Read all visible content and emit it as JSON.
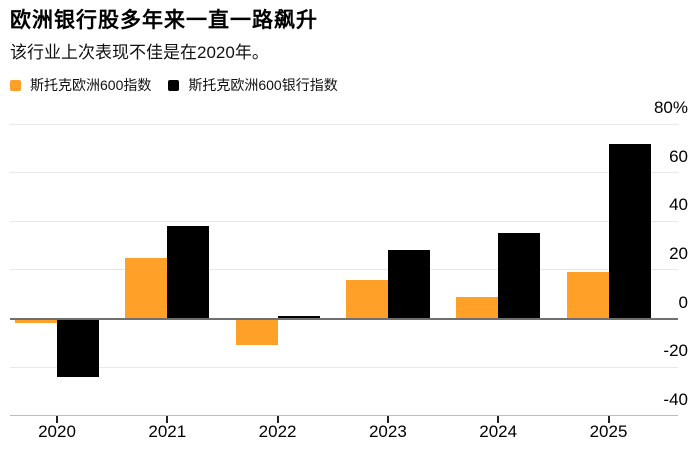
{
  "header": {
    "title": "欧洲银行股多年来一直一路飙升",
    "subtitle": "该行业上次表现不佳是在2020年。"
  },
  "legend": {
    "items": [
      {
        "label": "斯托克欧洲600指数",
        "color": "#FFA128"
      },
      {
        "label": "斯托克欧洲600银行指数",
        "color": "#000000"
      }
    ]
  },
  "chart_data": {
    "type": "bar",
    "title": "欧洲银行股多年来一直一路飙升",
    "subtitle": "该行业上次表现不佳是在2020年。",
    "categories": [
      "2020",
      "2021",
      "2022",
      "2023",
      "2024",
      "2025"
    ],
    "series": [
      {
        "name": "斯托克欧洲600指数",
        "color": "#FFA128",
        "values": [
          -2,
          25,
          -11,
          16,
          9,
          19
        ]
      },
      {
        "name": "斯托克欧洲600银行指数",
        "color": "#000000",
        "values": [
          -24,
          38,
          1,
          28,
          35,
          72
        ]
      }
    ],
    "unit": "%",
    "ylim": [
      -40,
      80
    ],
    "yticks": [
      80,
      60,
      40,
      20,
      0,
      -20,
      -40
    ],
    "ytick_labels": [
      "80%",
      "60",
      "40",
      "20",
      "0",
      "-20",
      "-40"
    ],
    "grid": true,
    "legend_position": "top-left",
    "colors": {
      "gridline": "#E8E8E8",
      "zero_line": "#6F6F6F",
      "baseline": "#BDBDBD",
      "tick": "#222222",
      "background": "#FFFFFF"
    }
  }
}
